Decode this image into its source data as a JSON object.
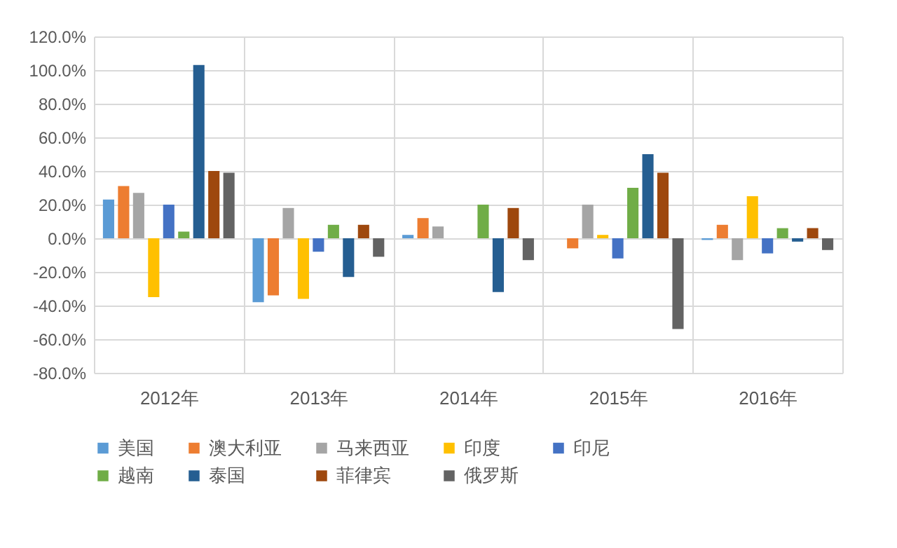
{
  "chart_data": {
    "type": "bar",
    "categories": [
      "2012年",
      "2013年",
      "2014年",
      "2015年",
      "2016年"
    ],
    "series": [
      {
        "name": "美国",
        "color": "#5b9bd5",
        "values": [
          23,
          -38,
          2,
          0,
          -1
        ]
      },
      {
        "name": "澳大利亚",
        "color": "#ed7d31",
        "values": [
          31,
          -34,
          12,
          -6,
          8
        ]
      },
      {
        "name": "马来西亚",
        "color": "#a5a5a5",
        "values": [
          27,
          18,
          7,
          20,
          -13
        ]
      },
      {
        "name": "印度",
        "color": "#ffc000",
        "values": [
          -35,
          -36,
          0,
          2,
          25
        ]
      },
      {
        "name": "印尼",
        "color": "#4472c4",
        "values": [
          20,
          -8,
          0,
          -12,
          -9
        ]
      },
      {
        "name": "越南",
        "color": "#70ad47",
        "values": [
          4,
          8,
          20,
          30,
          6
        ]
      },
      {
        "name": "泰国",
        "color": "#255e91",
        "values": [
          103,
          -23,
          -32,
          50,
          -2
        ]
      },
      {
        "name": "菲律宾",
        "color": "#9e480e",
        "values": [
          40,
          8,
          18,
          39,
          6
        ]
      },
      {
        "name": "俄罗斯",
        "color": "#636363",
        "values": [
          39,
          -11,
          -13,
          -54,
          -7
        ]
      }
    ],
    "ylim": [
      -80,
      120
    ],
    "yticks": [
      {
        "value": -80,
        "label": "-80.0%"
      },
      {
        "value": -60,
        "label": "-60.0%"
      },
      {
        "value": -40,
        "label": "-40.0%"
      },
      {
        "value": -20,
        "label": "-20.0%"
      },
      {
        "value": 0,
        "label": "0.0%"
      },
      {
        "value": 20,
        "label": "20.0%"
      },
      {
        "value": 40,
        "label": "40.0%"
      },
      {
        "value": 60,
        "label": "60.0%"
      },
      {
        "value": 80,
        "label": "80.0%"
      },
      {
        "value": 100,
        "label": "100.0%"
      },
      {
        "value": 120,
        "label": "120.0%"
      }
    ],
    "grid": true,
    "legend": "bottom"
  }
}
